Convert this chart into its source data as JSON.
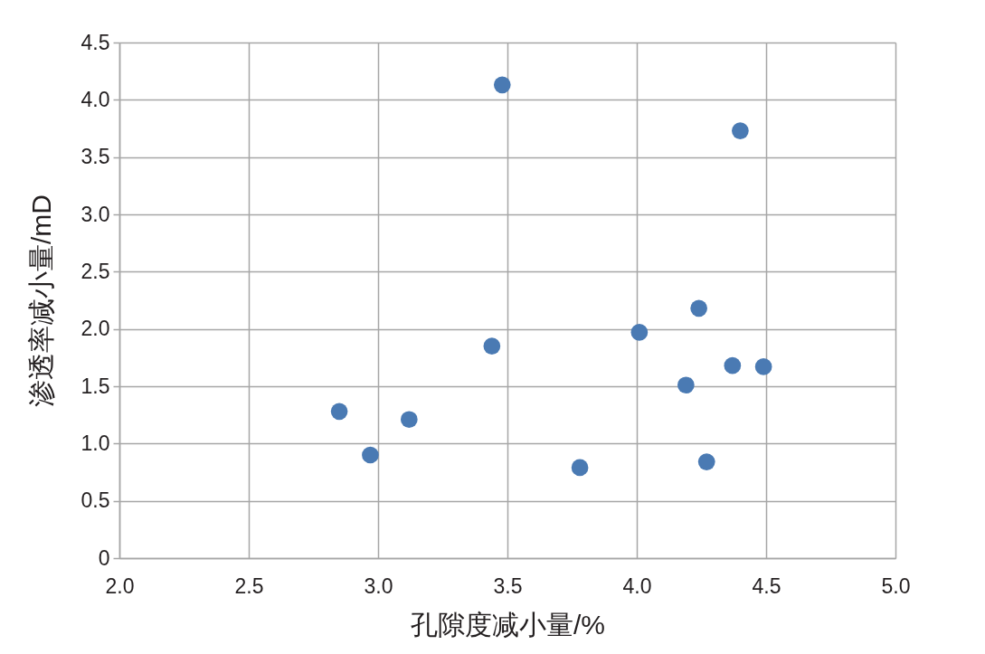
{
  "chart_data": {
    "type": "scatter",
    "xlabel": "孔隙度减小量/%",
    "ylabel": "渗透率减小量/mD",
    "series": [
      {
        "color": "#4a7ab3",
        "x": [
          3.48,
          4.4,
          4.24,
          4.01,
          3.44,
          4.37,
          4.49,
          4.19,
          2.85,
          3.12,
          2.97,
          3.78,
          4.27
        ],
        "values": [
          4.13,
          3.73,
          2.18,
          1.97,
          1.85,
          1.68,
          1.67,
          1.51,
          1.28,
          1.21,
          0.9,
          0.79,
          0.84
        ]
      }
    ],
    "xlim": [
      2.0,
      5.0
    ],
    "xticks": [
      {
        "value": 2,
        "label": "2.0"
      },
      2.5,
      {
        "value": 3,
        "label": "3.0"
      },
      3.5,
      {
        "value": 4,
        "label": "4.0"
      },
      4.5,
      {
        "value": 5,
        "label": "5.0"
      }
    ],
    "ylim": [
      0,
      4.5
    ],
    "yticks": [
      0,
      0.5,
      {
        "value": 1,
        "label": "1.0"
      },
      1.5,
      {
        "value": 2,
        "label": "2.0"
      },
      2.5,
      {
        "value": 3,
        "label": "3.0"
      },
      3.5,
      {
        "value": 4,
        "label": "4.0"
      },
      4.5
    ],
    "grid": true,
    "marker": "circle"
  }
}
